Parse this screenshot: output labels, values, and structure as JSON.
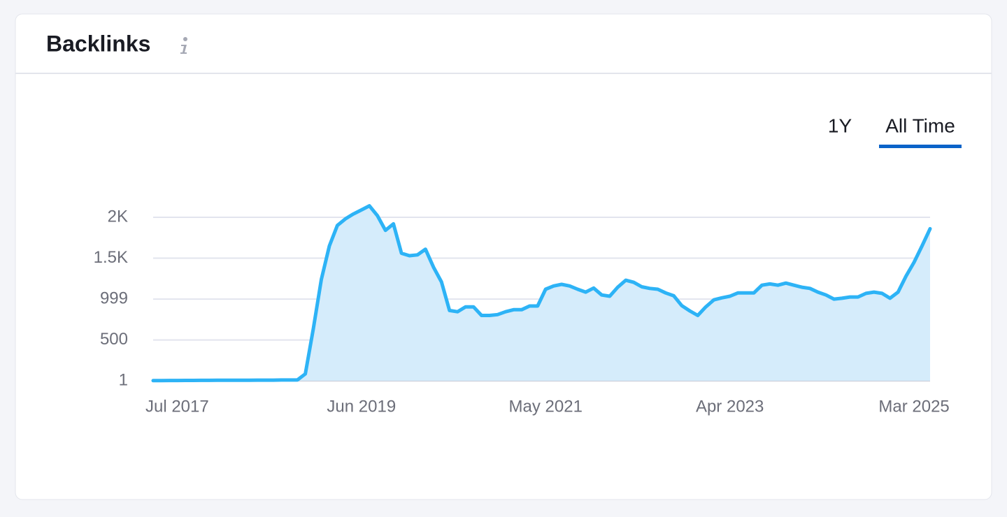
{
  "header": {
    "title": "Backlinks"
  },
  "range_buttons": [
    "1Y",
    "All Time"
  ],
  "selected_range": "All Time",
  "chart_data": {
    "type": "area",
    "categories": [
      null,
      null,
      null,
      "Jul 2017",
      null,
      null,
      null,
      null,
      null,
      null,
      null,
      null,
      null,
      null,
      null,
      null,
      null,
      null,
      null,
      null,
      null,
      null,
      null,
      null,
      null,
      null,
      "Jun 2019",
      null,
      null,
      null,
      null,
      null,
      null,
      null,
      null,
      null,
      null,
      null,
      null,
      null,
      null,
      null,
      null,
      null,
      null,
      null,
      null,
      null,
      null,
      "May 2021",
      null,
      null,
      null,
      null,
      null,
      null,
      null,
      null,
      null,
      null,
      null,
      null,
      null,
      null,
      null,
      null,
      null,
      null,
      null,
      null,
      null,
      null,
      "Apr 2023",
      null,
      null,
      null,
      null,
      null,
      null,
      null,
      null,
      null,
      null,
      null,
      null,
      null,
      null,
      null,
      null,
      null,
      null,
      null,
      null,
      null,
      null,
      "Mar 2025",
      null,
      null
    ],
    "series": [
      {
        "name": "Backlinks",
        "color": "#2db3f6",
        "fill": "#d5ecfb",
        "values": [
          3,
          3,
          4,
          4,
          5,
          5,
          6,
          6,
          7,
          7,
          8,
          8,
          8,
          9,
          9,
          9,
          10,
          10,
          10,
          85,
          640,
          1240,
          1650,
          1900,
          1980,
          2040,
          2090,
          2140,
          2020,
          1840,
          1920,
          1560,
          1530,
          1540,
          1610,
          1390,
          1210,
          860,
          845,
          905,
          905,
          800,
          800,
          810,
          845,
          870,
          870,
          915,
          915,
          1120,
          1160,
          1180,
          1160,
          1120,
          1085,
          1135,
          1050,
          1035,
          1145,
          1230,
          1205,
          1150,
          1130,
          1120,
          1075,
          1040,
          920,
          855,
          800,
          905,
          990,
          1015,
          1035,
          1075,
          1075,
          1075,
          1170,
          1185,
          1170,
          1195,
          1170,
          1145,
          1130,
          1085,
          1050,
          1000,
          1010,
          1025,
          1025,
          1070,
          1085,
          1070,
          1010,
          1085,
          1280,
          1450,
          1650,
          1860
        ]
      }
    ],
    "ylim": [
      1,
      2000
    ],
    "yticks": [
      1,
      500,
      999,
      {
        "value": 1500,
        "label": "1.5K"
      },
      {
        "value": 2000,
        "label": "2K"
      }
    ],
    "grid": true
  }
}
